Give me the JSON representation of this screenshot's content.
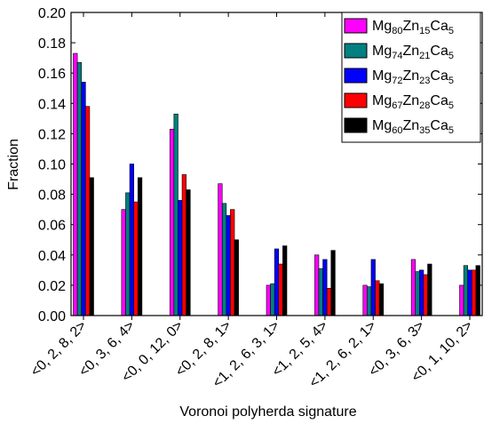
{
  "chart_data": {
    "type": "bar",
    "xlabel": "Voronoi polyherda signature",
    "ylabel": "Fraction",
    "categories": [
      "<0, 2, 8, 2>",
      "<0, 3, 6, 4>",
      "<0, 0, 12, 0>",
      "<0, 2, 8, 1>",
      "<1, 2, 6, 3, 1>",
      "<1, 2, 5, 4>",
      "<1, 2, 6, 2, 1>",
      "<0, 3, 6, 3>",
      "<0, 1, 10, 2>"
    ],
    "series": [
      {
        "name": "Mg80Zn15Ca5",
        "color": "#ff00ff",
        "values": [
          0.173,
          0.07,
          0.123,
          0.087,
          0.02,
          0.04,
          0.02,
          0.037,
          0.02
        ]
      },
      {
        "name": "Mg74Zn21Ca5",
        "color": "#008080",
        "values": [
          0.167,
          0.081,
          0.133,
          0.074,
          0.021,
          0.031,
          0.019,
          0.029,
          0.033
        ]
      },
      {
        "name": "Mg72Zn23Ca5",
        "color": "#0000ff",
        "values": [
          0.154,
          0.1,
          0.076,
          0.066,
          0.044,
          0.037,
          0.037,
          0.03,
          0.03
        ]
      },
      {
        "name": "Mg67Zn28Ca5",
        "color": "#ff0000",
        "values": [
          0.138,
          0.075,
          0.093,
          0.07,
          0.034,
          0.018,
          0.023,
          0.027,
          0.03
        ]
      },
      {
        "name": "Mg60Zn35Ca5",
        "color": "#000000",
        "values": [
          0.091,
          0.091,
          0.083,
          0.05,
          0.046,
          0.043,
          0.021,
          0.034,
          0.033
        ]
      }
    ],
    "ylim": [
      0,
      0.2
    ],
    "yticks": [
      {
        "value": 0,
        "label": "0.00"
      },
      0.02,
      0.04,
      0.06,
      0.08,
      {
        "value": 0.1,
        "label": "0.10"
      },
      0.12,
      0.14,
      0.16,
      0.18,
      {
        "value": 0.2,
        "label": "0.20"
      }
    ],
    "legend": "upper right"
  }
}
